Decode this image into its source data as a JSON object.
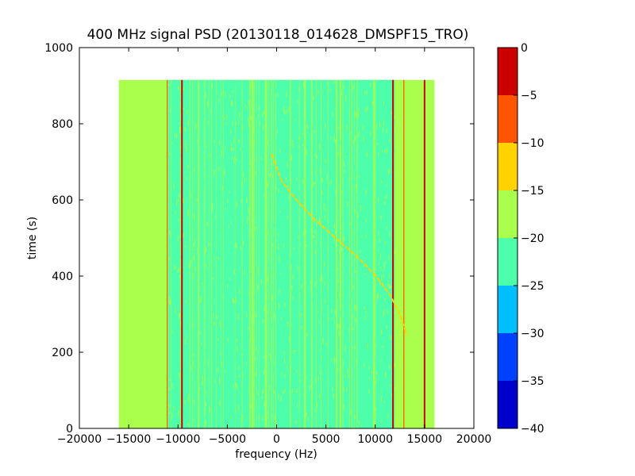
{
  "chart_data": {
    "type": "heatmap",
    "title": "400 MHz signal PSD (20130118_014628_DMSPF15_TRO)",
    "xlabel": "frequency (Hz)",
    "ylabel": "time (s)",
    "xlim": [
      -20000,
      20000
    ],
    "ylim": [
      0,
      1000
    ],
    "xticks": [
      -20000,
      -15000,
      -10000,
      -5000,
      0,
      5000,
      10000,
      15000,
      20000
    ],
    "xtick_labels": [
      "−20000",
      "−15000",
      "−10000",
      "−5000",
      "0",
      "5000",
      "10000",
      "15000",
      "20000"
    ],
    "yticks": [
      0,
      200,
      400,
      600,
      800,
      1000
    ],
    "ytick_labels": [
      "0",
      "200",
      "400",
      "600",
      "800",
      "1000"
    ],
    "grid": false,
    "data_extent": {
      "freq_min": -16000,
      "freq_max": 16000,
      "time_min": 0,
      "time_max": 915
    },
    "background_level_range": [
      -20,
      -15
    ],
    "dominant_inner_level_range": [
      -25,
      -20
    ],
    "inner_band_freq_range": [
      -11000,
      12000
    ],
    "constant_tones": [
      {
        "freq_hz": -9600,
        "level_range": [
          -5,
          0
        ]
      },
      {
        "freq_hz": 11800,
        "level_range": [
          -5,
          0
        ]
      },
      {
        "freq_hz": 15000,
        "level_range": [
          -5,
          0
        ]
      },
      {
        "freq_hz": -11100,
        "level_range": [
          -10,
          -5
        ]
      },
      {
        "freq_hz": 12900,
        "level_range": [
          -10,
          -5
        ]
      }
    ],
    "doppler_trace": {
      "points": [
        {
          "time_s": 720,
          "freq_hz": -500
        },
        {
          "time_s": 650,
          "freq_hz": 500
        },
        {
          "time_s": 600,
          "freq_hz": 2000
        },
        {
          "time_s": 550,
          "freq_hz": 3800
        },
        {
          "time_s": 500,
          "freq_hz": 6000
        },
        {
          "time_s": 450,
          "freq_hz": 8200
        },
        {
          "time_s": 400,
          "freq_hz": 10100
        },
        {
          "time_s": 350,
          "freq_hz": 11500
        },
        {
          "time_s": 300,
          "freq_hz": 12500
        },
        {
          "time_s": 245,
          "freq_hz": 13200
        }
      ],
      "level_range": [
        -15,
        -10
      ]
    },
    "colorbar": {
      "min": -40,
      "max": 0,
      "ticks": [
        0,
        -5,
        -10,
        -15,
        -20,
        -25,
        -30,
        -35,
        -40
      ],
      "tick_labels": [
        "0",
        "−5",
        "−10",
        "−15",
        "−20",
        "−25",
        "−30",
        "−35",
        "−40"
      ],
      "levels": [
        {
          "from": -40,
          "to": -35,
          "color": "#0000cc"
        },
        {
          "from": -35,
          "to": -30,
          "color": "#0040ff"
        },
        {
          "from": -30,
          "to": -25,
          "color": "#00bfff"
        },
        {
          "from": -25,
          "to": -20,
          "color": "#4dffaa"
        },
        {
          "from": -20,
          "to": -15,
          "color": "#aaff4d"
        },
        {
          "from": -15,
          "to": -10,
          "color": "#ffd200"
        },
        {
          "from": -10,
          "to": -5,
          "color": "#ff5500"
        },
        {
          "from": -5,
          "to": 0,
          "color": "#cc0000"
        }
      ]
    }
  }
}
